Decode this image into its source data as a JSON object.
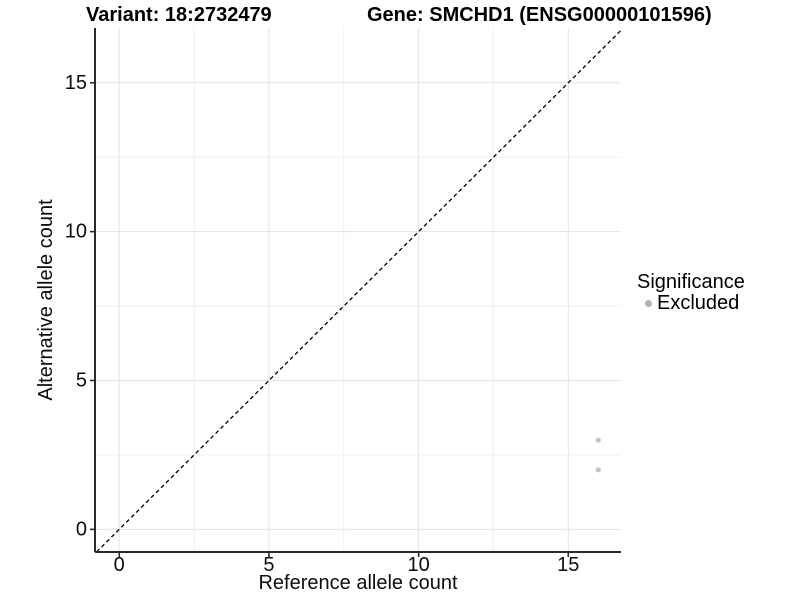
{
  "chart_data": {
    "type": "scatter",
    "titles": {
      "left": "Variant: 18:2732479",
      "right": "Gene: SMCHD1 (ENSG00000101596)"
    },
    "xlabel": "Reference allele count",
    "ylabel": "Alternative allele count",
    "xlim": [
      -0.81,
      16.76
    ],
    "ylim": [
      -0.76,
      16.84
    ],
    "x_major_ticks": [
      0,
      5,
      10,
      15
    ],
    "y_major_ticks": [
      0,
      5,
      10,
      15
    ],
    "x_minor_ticks": [
      2.5,
      7.5,
      12.5
    ],
    "y_minor_ticks": [
      2.5,
      7.5,
      12.5
    ],
    "grid": "major+minor",
    "identity_line": {
      "slope": 1,
      "intercept": 0,
      "style": "dashed",
      "color": "#000000"
    },
    "series": [
      {
        "name": "Excluded",
        "color": "#c4c4c4",
        "points": [
          [
            16,
            3
          ],
          [
            16,
            2
          ]
        ]
      }
    ],
    "legend": {
      "title": "Significance",
      "position": "right",
      "items": [
        {
          "label": "Excluded",
          "swatch": "dot",
          "color": "#b2b2b2"
        }
      ]
    },
    "theme": {
      "background": "#ffffff",
      "grid_major_color": "#e3e3e3",
      "grid_minor_color": "#f0f0f0",
      "axis_line_color": "#2a2a2a",
      "tick_color": "#2a2a2a",
      "tick_label_color": "#0d0d0d",
      "text_color": "#000000"
    }
  }
}
